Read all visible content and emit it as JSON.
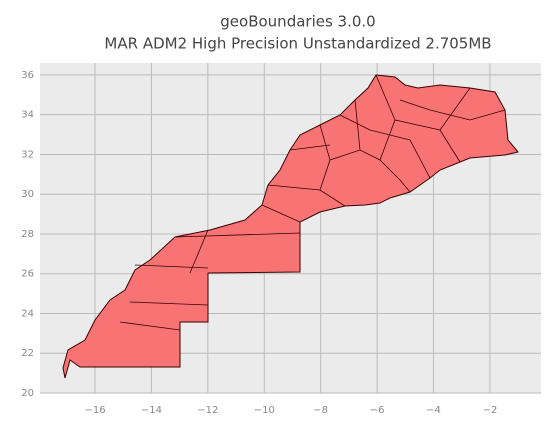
{
  "title_lines": [
    "geoBoundaries 3.0.0",
    "MAR ADM2 High Precision Unstandardized 2.705MB"
  ],
  "xlim": [
    -17.95,
    -0.19
  ],
  "ylim": [
    20,
    36.6
  ],
  "xticks": [
    {
      "value": -16,
      "label": "−16"
    },
    {
      "value": -14,
      "label": "−14"
    },
    {
      "value": -12,
      "label": "−12"
    },
    {
      "value": -10,
      "label": "−10"
    },
    {
      "value": -8,
      "label": "−8"
    },
    {
      "value": -6,
      "label": "−6"
    },
    {
      "value": -4,
      "label": "−4"
    },
    {
      "value": -2,
      "label": "−2"
    }
  ],
  "yticks": [
    20,
    22,
    24,
    26,
    28,
    30,
    32,
    34,
    36
  ]
}
